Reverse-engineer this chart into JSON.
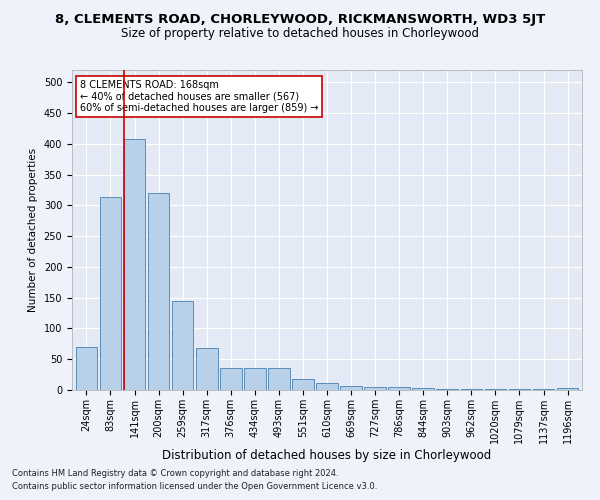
{
  "title": "8, CLEMENTS ROAD, CHORLEYWOOD, RICKMANSWORTH, WD3 5JT",
  "subtitle": "Size of property relative to detached houses in Chorleywood",
  "xlabel": "Distribution of detached houses by size in Chorleywood",
  "ylabel": "Number of detached properties",
  "categories": [
    "24sqm",
    "83sqm",
    "141sqm",
    "200sqm",
    "259sqm",
    "317sqm",
    "376sqm",
    "434sqm",
    "493sqm",
    "551sqm",
    "610sqm",
    "669sqm",
    "727sqm",
    "786sqm",
    "844sqm",
    "903sqm",
    "962sqm",
    "1020sqm",
    "1079sqm",
    "1137sqm",
    "1196sqm"
  ],
  "values": [
    70,
    313,
    408,
    320,
    145,
    68,
    35,
    35,
    35,
    18,
    11,
    6,
    5,
    5,
    4,
    2,
    2,
    2,
    1,
    1,
    3
  ],
  "bar_color": "#b8d0e8",
  "bar_edge_color": "#5b8db8",
  "highlight_line_color": "#cc0000",
  "highlight_bar_index": 2,
  "annotation_text": "8 CLEMENTS ROAD: 168sqm\n← 40% of detached houses are smaller (567)\n60% of semi-detached houses are larger (859) →",
  "annotation_box_color": "#ffffff",
  "annotation_box_edge_color": "#cc0000",
  "ylim": [
    0,
    520
  ],
  "yticks": [
    0,
    50,
    100,
    150,
    200,
    250,
    300,
    350,
    400,
    450,
    500
  ],
  "footer_line1": "Contains HM Land Registry data © Crown copyright and database right 2024.",
  "footer_line2": "Contains public sector information licensed under the Open Government Licence v3.0.",
  "bg_color": "#eef2fa",
  "plot_bg_color": "#e4eaf5",
  "grid_color": "#ffffff",
  "title_fontsize": 9.5,
  "subtitle_fontsize": 8.5,
  "ylabel_fontsize": 7.5,
  "xlabel_fontsize": 8.5,
  "tick_fontsize": 7,
  "ann_fontsize": 7
}
